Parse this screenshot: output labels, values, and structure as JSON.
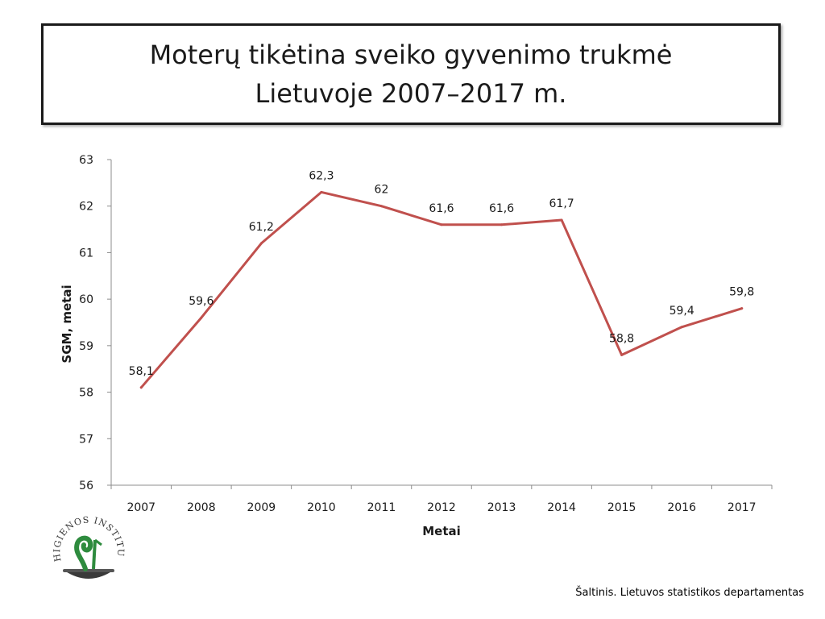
{
  "title": {
    "line1": "Moterų tikėtina sveiko gyvenimo trukmė",
    "line2": "Lietuvoje 2007–2017 m."
  },
  "chart_data": {
    "type": "line",
    "x": [
      "2007",
      "2008",
      "2009",
      "2010",
      "2011",
      "2012",
      "2013",
      "2014",
      "2015",
      "2016",
      "2017"
    ],
    "series": [
      {
        "values": [
          58.1,
          59.6,
          61.2,
          62.3,
          62,
          61.6,
          61.6,
          61.7,
          58.8,
          59.4,
          59.8
        ],
        "labels": [
          "58,1",
          "59,6",
          "61,2",
          "62,3",
          "62",
          "61,6",
          "61,6",
          "61,7",
          "58,8",
          "59,4",
          "59,8"
        ],
        "color": "#c0504d"
      }
    ],
    "xlabel": "Metai",
    "ylabel": "SGM, metai",
    "ylim": [
      56,
      63
    ],
    "yticks": [
      "56",
      "57",
      "58",
      "59",
      "60",
      "61",
      "62",
      "63"
    ],
    "grid": false
  },
  "logo": {
    "text": "HIGIENOS INSTITUTAS"
  },
  "source": "Šaltinis. Lietuvos  statistikos departamentas"
}
